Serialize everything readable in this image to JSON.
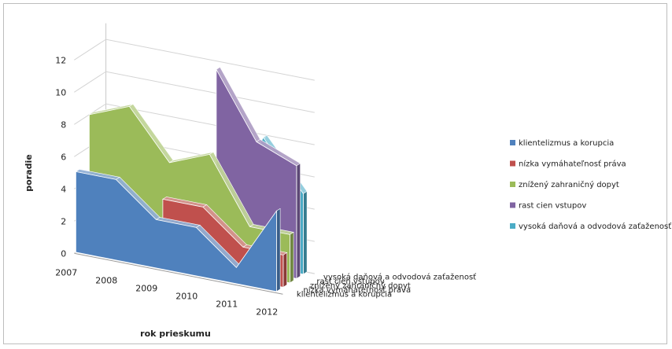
{
  "chart_data": {
    "type": "area",
    "subtype": "3d-area",
    "xlabel": "rok prieskumu",
    "ylabel": "poradie",
    "categories": [
      "2007",
      "2008",
      "2009",
      "2010",
      "2011",
      "2012"
    ],
    "ylim": [
      0,
      12
    ],
    "yticks": [
      "0",
      "2",
      "4",
      "6",
      "8",
      "10",
      "12"
    ],
    "grid": true,
    "legend_position": "right",
    "series": [
      {
        "name": "klientelizmus a korupcia",
        "color": "#4f81bd",
        "values": [
          5,
          5,
          3,
          3,
          1,
          5
        ]
      },
      {
        "name": "nízka vymáhateľnosť práva",
        "color": "#c0504d",
        "values": [
          null,
          null,
          4,
          4,
          2,
          2
        ]
      },
      {
        "name": "znížený zahraničný dopyt",
        "color": "#9bbb59",
        "values": [
          8,
          9,
          6,
          7,
          3,
          3
        ]
      },
      {
        "name": "rast cien vstupov",
        "color": "#8064a2",
        "values": [
          null,
          null,
          null,
          12,
          8,
          7
        ]
      },
      {
        "name": "vysoká daňová a odvodová zaťaženosť",
        "color": "#4bacc6",
        "values": [
          null,
          1,
          1,
          2,
          8,
          5
        ]
      }
    ]
  }
}
